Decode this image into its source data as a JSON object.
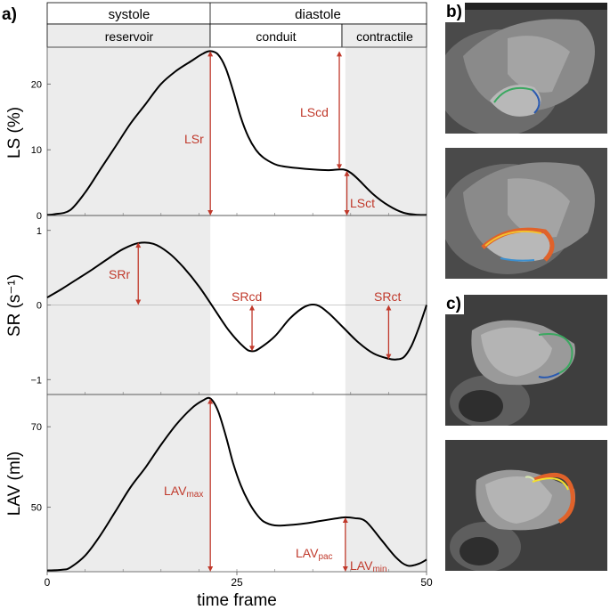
{
  "panel_labels": {
    "a": "a)",
    "b": "b)",
    "c": "c)"
  },
  "colors": {
    "annotation": "#c0392b",
    "shade": "#ececec",
    "curve": "#000000"
  },
  "chart_data": {
    "type": "line",
    "xlabel": "time frame",
    "xlim": [
      0,
      50
    ],
    "xticks": [
      "0",
      "25",
      "50"
    ],
    "phases_top": [
      "systole",
      "diastole"
    ],
    "phases_sub": [
      "reservoir",
      "conduit",
      "contractile"
    ],
    "phase_bounds": [
      0,
      21.5,
      39.3,
      50
    ],
    "subplots": [
      {
        "ylabel": "LS (%)",
        "ylim": [
          0,
          25.6
        ],
        "yticks": [
          "0",
          "10",
          "20"
        ],
        "x": [
          0,
          1,
          3,
          5,
          7,
          9,
          11,
          13,
          15,
          17,
          19,
          20.5,
          21.5,
          22.5,
          23.5,
          24.5,
          25.5,
          26.5,
          27.5,
          28.5,
          30,
          31,
          33,
          35,
          37,
          39,
          40,
          41,
          43,
          45,
          47,
          49,
          50
        ],
        "y": [
          0.1,
          0.2,
          0.8,
          3.5,
          7,
          10.5,
          14,
          17,
          20,
          22,
          23.5,
          24.6,
          25,
          24.5,
          22.5,
          19,
          15,
          12,
          10,
          8.8,
          7.8,
          7.5,
          7.2,
          7.0,
          6.9,
          7.0,
          6.5,
          5.5,
          3.2,
          1.5,
          0.4,
          0.1,
          0.1
        ],
        "annotations": [
          "LSr",
          "LScd",
          "LSct"
        ]
      },
      {
        "ylabel": "SR (s⁻¹)",
        "ylim": [
          -1.2,
          1.2
        ],
        "yticks": [
          "−1",
          "0",
          "1"
        ],
        "x": [
          0,
          2,
          4,
          6,
          8,
          10,
          12,
          14,
          16,
          18,
          20,
          22,
          24,
          26,
          27,
          28,
          30,
          32,
          34,
          35.5,
          37,
          39,
          41,
          43,
          45,
          46,
          47,
          48,
          49,
          50
        ],
        "y": [
          0.1,
          0.22,
          0.35,
          0.48,
          0.62,
          0.75,
          0.83,
          0.82,
          0.7,
          0.5,
          0.25,
          -0.05,
          -0.35,
          -0.57,
          -0.62,
          -0.58,
          -0.42,
          -0.18,
          -0.02,
          0.0,
          -0.1,
          -0.3,
          -0.5,
          -0.65,
          -0.72,
          -0.73,
          -0.7,
          -0.55,
          -0.3,
          0.0
        ],
        "annotations": [
          "SRr",
          "SRcd",
          "SRct"
        ]
      },
      {
        "ylabel": "LAV (ml)",
        "ylim": [
          34,
          78
        ],
        "yticks": [
          "50",
          "70"
        ],
        "x": [
          0,
          2,
          3,
          5,
          7,
          9,
          11,
          13,
          15,
          17,
          19,
          20.5,
          21.5,
          22.5,
          23.5,
          24.5,
          25.5,
          26.5,
          27.5,
          28.5,
          30,
          32,
          34,
          36,
          38,
          39.3,
          40.5,
          42,
          44,
          46,
          47.5,
          49,
          50
        ],
        "y": [
          34.3,
          34.5,
          35,
          38,
          43,
          49,
          55,
          60,
          65.5,
          70.5,
          74.5,
          76.5,
          77,
          74,
          68,
          61,
          55.5,
          51.5,
          48.5,
          46.5,
          45.5,
          45.6,
          46,
          46.6,
          47.2,
          47.5,
          47.3,
          46.5,
          42,
          37.5,
          35.5,
          36,
          37
        ],
        "annotations": [
          "LAV",
          "max",
          "LAV",
          "pac",
          "LAV",
          "min"
        ]
      }
    ]
  }
}
